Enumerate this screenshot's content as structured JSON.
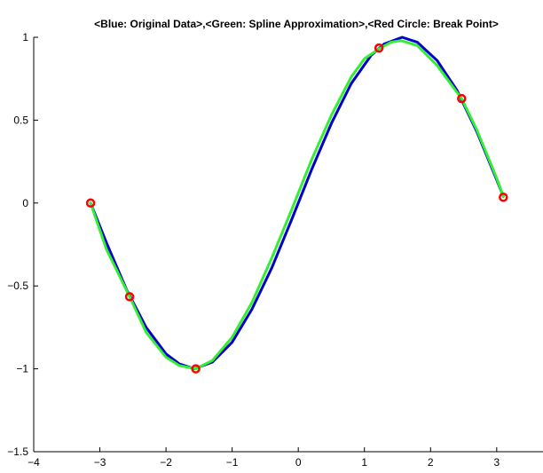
{
  "chart_data": {
    "type": "line",
    "title": "<Blue: Original Data>,<Green: Spline Approximation>,<Red Circle: Break Point>",
    "xlabel": "",
    "ylabel": "",
    "xlim": [
      -4,
      3.7
    ],
    "ylim": [
      -1.5,
      1
    ],
    "xticks": [
      "−4",
      "−3",
      "−2",
      "−1",
      "0",
      "1",
      "2",
      "3"
    ],
    "xtick_values": [
      -4,
      -3,
      -2,
      -1,
      0,
      1,
      2,
      3
    ],
    "yticks": [
      "−1.5",
      "−1",
      "−0.5",
      "0",
      "0.5",
      "1"
    ],
    "ytick_values": [
      -1.5,
      -1,
      -0.5,
      0,
      0.5,
      1
    ],
    "grid": false,
    "series": [
      {
        "color": "#0000cc",
        "x": [
          -3.14,
          -2.9,
          -2.6,
          -2.3,
          -2.0,
          -1.8,
          -1.57,
          -1.3,
          -1.0,
          -0.7,
          -0.4,
          -0.1,
          0.2,
          0.5,
          0.8,
          1.1,
          1.3,
          1.57,
          1.8,
          2.1,
          2.4,
          2.7,
          3.0,
          3.1
        ],
        "y": [
          0.0,
          -0.24,
          -0.52,
          -0.75,
          -0.91,
          -0.97,
          -1.0,
          -0.96,
          -0.84,
          -0.64,
          -0.39,
          -0.1,
          0.2,
          0.48,
          0.72,
          0.89,
          0.96,
          1.0,
          0.97,
          0.86,
          0.68,
          0.43,
          0.14,
          0.04
        ]
      },
      {
        "color": "#33ee33",
        "x": [
          -3.14,
          -2.9,
          -2.55,
          -2.3,
          -2.0,
          -1.8,
          -1.55,
          -1.3,
          -1.0,
          -0.7,
          -0.4,
          -0.1,
          0.2,
          0.5,
          0.8,
          1.0,
          1.22,
          1.4,
          1.55,
          1.8,
          2.1,
          2.47,
          2.7,
          3.0,
          3.1
        ],
        "y": [
          0.0,
          -0.28,
          -0.565,
          -0.78,
          -0.93,
          -0.98,
          -1.0,
          -0.95,
          -0.81,
          -0.6,
          -0.33,
          -0.04,
          0.26,
          0.53,
          0.76,
          0.87,
          0.93,
          0.97,
          0.98,
          0.95,
          0.83,
          0.63,
          0.44,
          0.15,
          0.04
        ]
      }
    ],
    "break_points": {
      "color": "#ff0000",
      "x": [
        -3.14,
        -2.55,
        -1.55,
        1.22,
        2.47,
        3.1
      ],
      "y": [
        0.0,
        -0.565,
        -1.0,
        0.935,
        0.63,
        0.035
      ]
    }
  }
}
